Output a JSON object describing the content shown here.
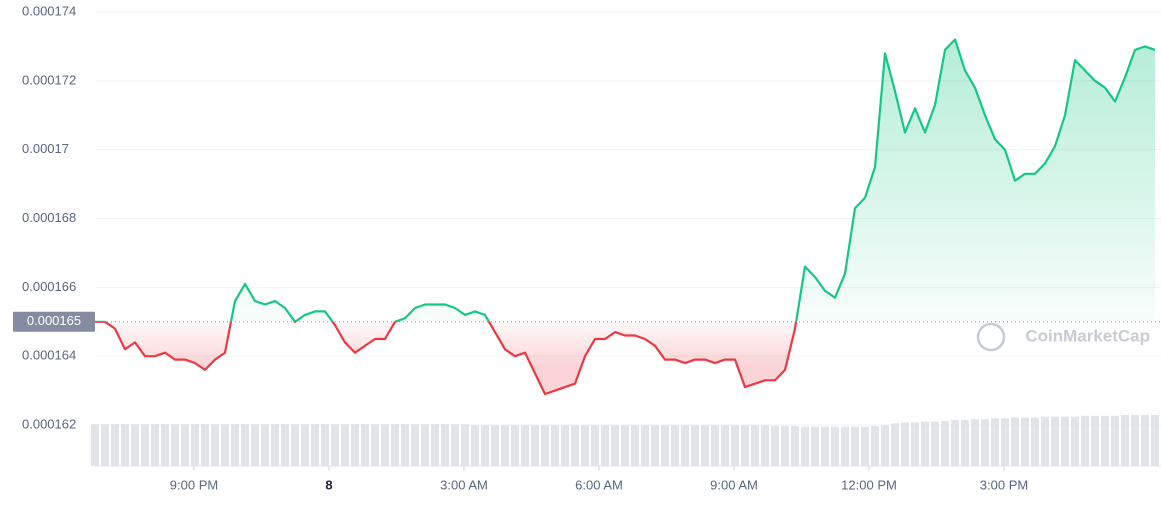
{
  "chart_data": {
    "type": "line",
    "values": [
      0.000165,
      0.000165,
      0.0001648,
      0.0001642,
      0.0001644,
      0.000164,
      0.000164,
      0.0001641,
      0.0001639,
      0.0001639,
      0.0001638,
      0.0001636,
      0.0001639,
      0.0001641,
      0.0001656,
      0.0001661,
      0.0001656,
      0.0001655,
      0.0001656,
      0.0001654,
      0.000165,
      0.0001652,
      0.0001653,
      0.0001653,
      0.0001649,
      0.0001644,
      0.0001641,
      0.0001643,
      0.0001645,
      0.0001645,
      0.000165,
      0.0001651,
      0.0001654,
      0.0001655,
      0.0001655,
      0.0001655,
      0.0001654,
      0.0001652,
      0.0001653,
      0.0001652,
      0.0001647,
      0.0001642,
      0.000164,
      0.0001641,
      0.0001635,
      0.0001629,
      0.000163,
      0.0001631,
      0.0001632,
      0.000164,
      0.0001645,
      0.0001645,
      0.0001647,
      0.0001646,
      0.0001646,
      0.0001645,
      0.0001643,
      0.0001639,
      0.0001639,
      0.0001638,
      0.0001639,
      0.0001639,
      0.0001638,
      0.0001639,
      0.0001639,
      0.0001631,
      0.0001632,
      0.0001633,
      0.0001633,
      0.0001636,
      0.0001648,
      0.0001666,
      0.0001663,
      0.0001659,
      0.0001657,
      0.0001664,
      0.0001683,
      0.0001686,
      0.0001695,
      0.0001728,
      0.0001717,
      0.0001705,
      0.0001712,
      0.0001705,
      0.0001713,
      0.0001729,
      0.0001732,
      0.0001723,
      0.0001718,
      0.000171,
      0.0001703,
      0.00017,
      0.0001691,
      0.0001693,
      0.0001693,
      0.0001696,
      0.0001701,
      0.000171,
      0.0001726,
      0.0001723,
      0.000172,
      0.0001718,
      0.0001714,
      0.0001721,
      0.0001729,
      0.000173,
      0.0001729
    ],
    "volume": [
      50,
      50,
      50,
      50,
      50,
      50,
      50,
      50,
      50,
      50,
      50,
      50,
      50,
      50,
      50,
      50,
      50,
      50,
      50,
      50,
      50,
      50,
      50,
      50,
      50,
      50,
      50,
      50,
      50,
      50,
      50,
      50,
      50,
      50,
      50,
      50,
      50,
      50,
      49,
      49,
      49,
      49,
      49,
      49,
      49,
      49,
      49,
      49,
      49,
      49,
      49,
      49,
      49,
      49,
      49,
      49,
      49,
      49,
      49,
      49,
      49,
      49,
      49,
      49,
      49,
      49,
      49,
      49,
      48,
      48,
      48,
      47,
      47,
      47,
      47,
      47,
      47,
      47,
      48,
      49,
      51,
      52,
      52,
      53,
      53,
      54,
      55,
      55,
      56,
      56,
      57,
      57,
      58,
      58,
      58,
      59,
      59,
      59,
      59,
      60,
      60,
      60,
      60,
      61,
      61,
      61,
      61
    ],
    "reference": {
      "value": 0.000165,
      "label": "0.000165"
    },
    "ylim": [
      0.000162,
      0.000174
    ],
    "yticks": [
      0.000162,
      0.000164,
      0.000166,
      0.000168,
      0.00017,
      0.000172,
      0.000174
    ],
    "xlim": [
      0,
      106
    ],
    "xticks": [
      {
        "value": 9.9,
        "label": "9:00 PM"
      },
      {
        "value": 23.4,
        "label": "8"
      },
      {
        "value": 36.9,
        "label": "3:00 AM"
      },
      {
        "value": 50.4,
        "label": "6:00 AM"
      },
      {
        "value": 63.9,
        "label": "9:00 AM"
      },
      {
        "value": 77.4,
        "label": "12:00 PM"
      },
      {
        "value": 90.9,
        "label": "3:00 PM"
      }
    ],
    "up_color": "#16c784",
    "down_color": "#ea3943",
    "grid": true,
    "watermark": "CoinMarketCap"
  }
}
